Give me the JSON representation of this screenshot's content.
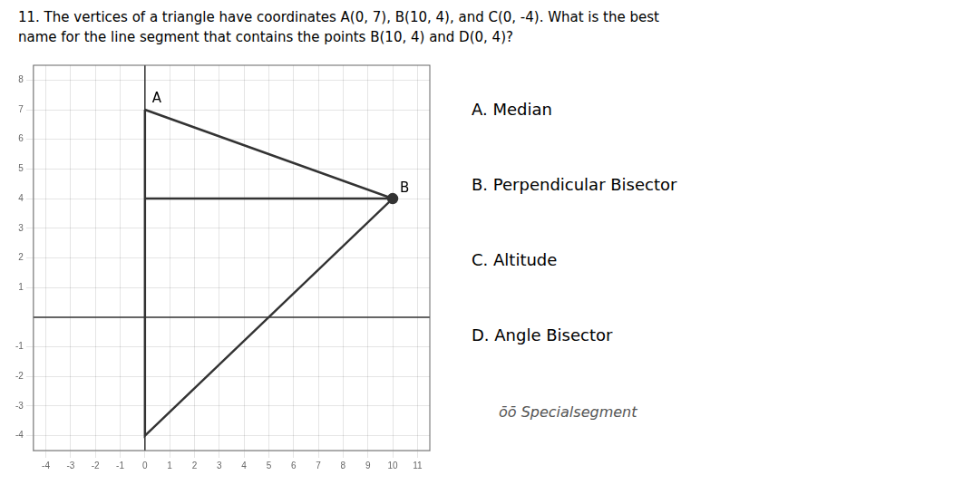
{
  "chart_data": {
    "type": "line",
    "title": [
      "11.  The vertices of a triangle have coordinates A(0, 7), B(10, 4),  and C(0, -4).  What is the best",
      "name for the line segment that contains the points B(10, 4) and D(0, 4)?"
    ],
    "series": [
      {
        "x": [
          0,
          10,
          0,
          0
        ],
        "values": [
          7,
          4,
          -4,
          7
        ],
        "color": "#333333",
        "marker": "none",
        "line_style": "solid"
      },
      {
        "x": [
          10,
          0
        ],
        "values": [
          4,
          4
        ],
        "color": "#333333",
        "marker": "none",
        "line_style": "solid"
      },
      {
        "x": [
          10
        ],
        "values": [
          4
        ],
        "color": "#333333",
        "marker": "circle",
        "line_style": "none"
      }
    ],
    "annotations": [
      {
        "text": "A",
        "x": 0,
        "y": 7
      },
      {
        "text": "B",
        "x": 10,
        "y": 4
      }
    ],
    "choices": [
      "A.  Median",
      "B.  Perpendicular Bisector",
      "C.  Altitude",
      "D.  Angle Bisector"
    ],
    "note": "ōō Specialsegment",
    "xlim": [
      -4.5,
      11.5
    ],
    "ylim": [
      -4.5,
      8.5
    ],
    "xticks": [
      -4,
      -3,
      -2,
      -1,
      0,
      1,
      2,
      3,
      4,
      5,
      6,
      7,
      8,
      9,
      10,
      11
    ],
    "yticks": [
      -4,
      -3,
      -2,
      -1,
      1,
      2,
      3,
      4,
      5,
      6,
      7,
      8
    ],
    "grid": true,
    "legend": false
  }
}
